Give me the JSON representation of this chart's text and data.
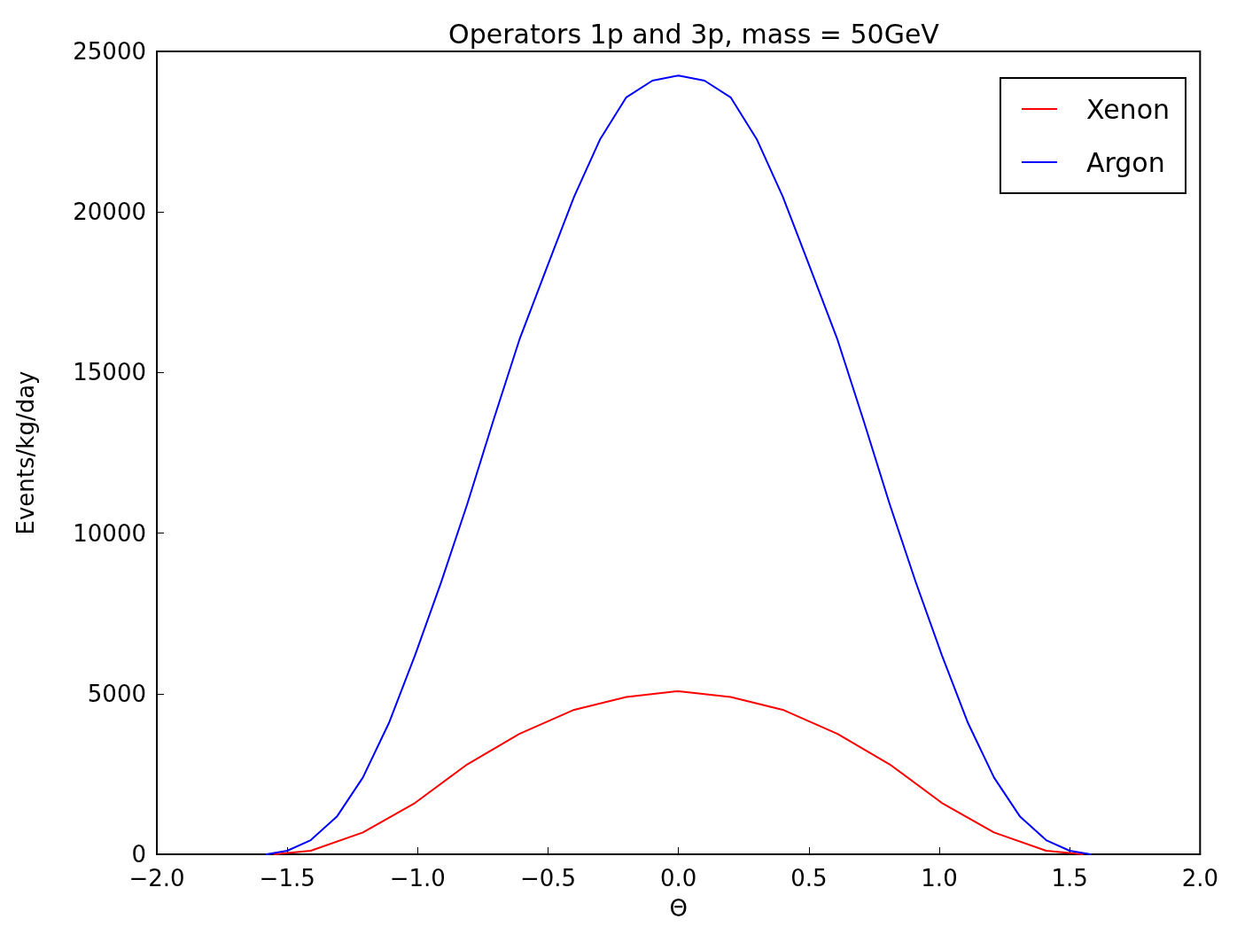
{
  "chart_data": {
    "type": "line",
    "title": "Operators 1p and 3p, mass = 50GeV",
    "xlabel": "Θ",
    "ylabel": "Events/kg/day",
    "xlim": [
      -2,
      2
    ],
    "xticks": [
      {
        "value": -2,
        "label": "−2.0"
      },
      {
        "value": -1.5,
        "label": "−1.5"
      },
      {
        "value": -1,
        "label": "−1.0"
      },
      {
        "value": -0.5,
        "label": "−0.5"
      },
      {
        "value": 0,
        "label": "0.0"
      },
      {
        "value": 0.5,
        "label": "0.5"
      },
      {
        "value": 1,
        "label": "1.0"
      },
      {
        "value": 1.5,
        "label": "1.5"
      },
      {
        "value": 2,
        "label": "2.0"
      }
    ],
    "ylim": [
      0,
      25000
    ],
    "yticks": [
      0,
      5000,
      10000,
      15000,
      20000,
      25000
    ],
    "grid": false,
    "legend": "top right",
    "line_style": "solid",
    "marker": "none",
    "series": [
      {
        "name": "Xenon",
        "color": "#ff0000",
        "x": [
          -1.55,
          -1.41,
          -1.21,
          -1.01,
          -0.81,
          -0.61,
          -0.4,
          -0.2,
          0,
          0.2,
          0.4,
          0.61,
          0.81,
          1.01,
          1.21,
          1.41,
          1.55
        ],
        "values": [
          0,
          110,
          680,
          1600,
          2800,
          3750,
          4500,
          4900,
          5080,
          4900,
          4500,
          3750,
          2800,
          1600,
          680,
          110,
          0
        ]
      },
      {
        "name": "Argon",
        "color": "#0000ff",
        "x": [
          -1.58,
          -1.5,
          -1.41,
          -1.31,
          -1.21,
          -1.11,
          -1.01,
          -0.91,
          -0.81,
          -0.71,
          -0.61,
          -0.5,
          -0.4,
          -0.3,
          -0.2,
          -0.1,
          0,
          0.1,
          0.2,
          0.3,
          0.4,
          0.5,
          0.61,
          0.71,
          0.81,
          0.91,
          1.01,
          1.11,
          1.21,
          1.31,
          1.41,
          1.5,
          1.58
        ],
        "values": [
          0,
          110,
          440,
          1170,
          2390,
          4090,
          6200,
          8470,
          10900,
          13500,
          16020,
          18370,
          20480,
          22270,
          23570,
          24090,
          24250,
          24090,
          23570,
          22270,
          20480,
          18370,
          16020,
          13500,
          10900,
          8470,
          6200,
          4090,
          2390,
          1170,
          440,
          110,
          0
        ]
      }
    ]
  }
}
